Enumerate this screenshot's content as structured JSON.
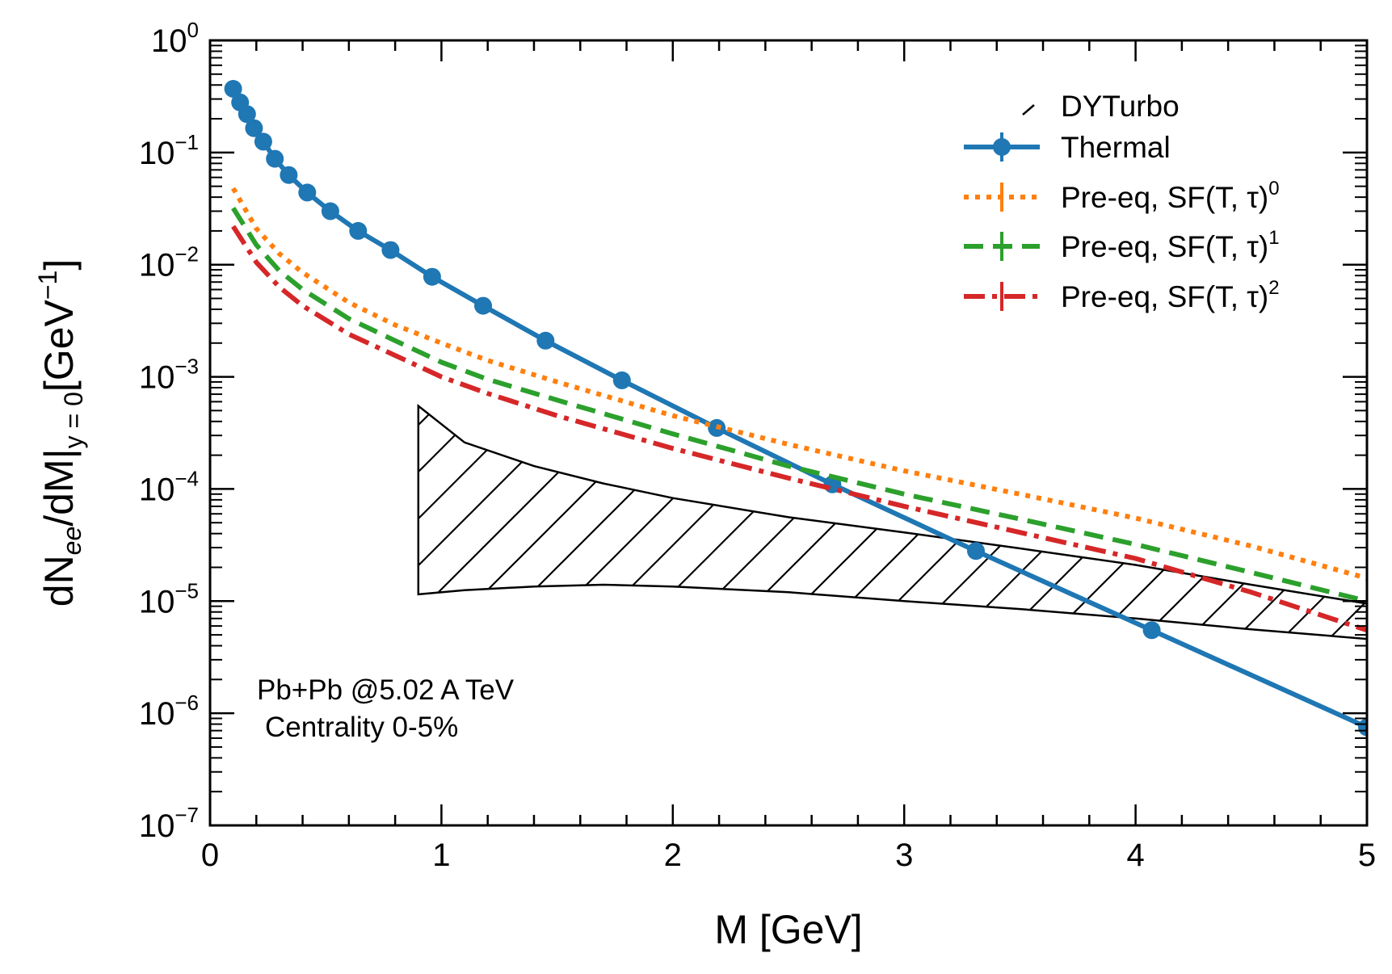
{
  "chart_data": {
    "type": "line",
    "x_axis": {
      "label": "M [GeV]",
      "range": [
        0,
        5
      ],
      "ticks": [
        0,
        1,
        2,
        3,
        4,
        5
      ],
      "tick_labels": [
        "0",
        "1",
        "2",
        "3",
        "4",
        "5"
      ],
      "minor_step": 0.2
    },
    "y_axis": {
      "label_parts": {
        "a": "dN",
        "a_sub": "ee",
        "b": "/dM|",
        "b_sub": "y = 0",
        "c": "[GeV",
        "c_sup": "−1",
        "d": "]"
      },
      "scale": "log",
      "range": [
        1e-07,
        1
      ],
      "tick_exponents": [
        0,
        -1,
        -2,
        -3,
        -4,
        -5,
        -6,
        -7
      ],
      "tick_base": "10",
      "tick_exp_labels": [
        "0",
        "−1",
        "−2",
        "−3",
        "−4",
        "−5",
        "−6",
        "−7"
      ]
    },
    "annotation": {
      "line1": "Pb+Pb @5.02 A TeV",
      "line2": "Centrality 0-5%"
    },
    "legend": {
      "position": "top-right",
      "entries": [
        {
          "key": "dyturbo",
          "label": "DYTurbo",
          "sup": ""
        },
        {
          "key": "thermal",
          "label": "Thermal",
          "sup": ""
        },
        {
          "key": "sf0",
          "label": "Pre-eq, SF(T, τ)",
          "sup": "0"
        },
        {
          "key": "sf1",
          "label": "Pre-eq, SF(T, τ)",
          "sup": "1"
        },
        {
          "key": "sf2",
          "label": "Pre-eq, SF(T, τ)",
          "sup": "2"
        }
      ]
    },
    "series": [
      {
        "key": "thermal",
        "name": "Thermal",
        "color": "#1f77b4",
        "style": "solid-markers",
        "x": [
          0.1,
          0.13,
          0.16,
          0.19,
          0.23,
          0.28,
          0.34,
          0.42,
          0.52,
          0.64,
          0.78,
          0.96,
          1.18,
          1.45,
          1.78,
          2.19,
          2.69,
          3.31,
          4.07,
          5.0
        ],
        "y": [
          0.37,
          0.28,
          0.22,
          0.165,
          0.125,
          0.088,
          0.063,
          0.044,
          0.03,
          0.02,
          0.0135,
          0.0078,
          0.0043,
          0.0021,
          0.00093,
          0.00035,
          0.00011,
          2.8e-05,
          5.5e-06,
          7.5e-07
        ]
      },
      {
        "key": "sf0",
        "name": "Pre-eq, SF(T, τ)^0",
        "color": "#ff7f0e",
        "style": "dotted",
        "x": [
          0.1,
          0.2,
          0.3,
          0.4,
          0.6,
          0.8,
          1.0,
          1.2,
          1.5,
          2.0,
          2.5,
          3.0,
          3.5,
          4.0,
          4.5,
          5.0
        ],
        "y": [
          0.048,
          0.021,
          0.0125,
          0.0085,
          0.0046,
          0.0029,
          0.002,
          0.0014,
          0.0009,
          0.00045,
          0.00025,
          0.000145,
          9e-05,
          5.5e-05,
          3.1e-05,
          1.6e-05
        ]
      },
      {
        "key": "sf1",
        "name": "Pre-eq, SF(T, τ)^1",
        "color": "#2ca02c",
        "style": "dashed",
        "x": [
          0.1,
          0.2,
          0.3,
          0.4,
          0.6,
          0.8,
          1.0,
          1.2,
          1.5,
          2.0,
          2.5,
          3.0,
          3.5,
          4.0,
          4.5,
          5.0
        ],
        "y": [
          0.032,
          0.015,
          0.0088,
          0.006,
          0.0033,
          0.0021,
          0.00135,
          0.00095,
          0.00062,
          0.00031,
          0.00016,
          9e-05,
          5.4e-05,
          3.2e-05,
          1.8e-05,
          1e-05
        ]
      },
      {
        "key": "sf2",
        "name": "Pre-eq, SF(T, τ)^2",
        "color": "#d62728",
        "style": "dashdot",
        "x": [
          0.1,
          0.2,
          0.3,
          0.4,
          0.6,
          0.8,
          1.0,
          1.2,
          1.5,
          2.0,
          2.5,
          3.0,
          3.5,
          4.0,
          4.5,
          5.0
        ],
        "y": [
          0.022,
          0.0105,
          0.0063,
          0.0043,
          0.0024,
          0.00155,
          0.001,
          0.00071,
          0.00045,
          0.00023,
          0.000125,
          7e-05,
          4.1e-05,
          2.4e-05,
          1.2e-05,
          5.5e-06
        ]
      }
    ],
    "band": {
      "key": "dyturbo",
      "name": "DYTurbo",
      "color": "#000000",
      "style": "hatched",
      "x": [
        0.9,
        1.1,
        1.4,
        1.7,
        2.0,
        2.5,
        3.0,
        3.5,
        4.0,
        4.5,
        5.0
      ],
      "upper": [
        0.00055,
        0.00026,
        0.00016,
        0.000112,
        8.3e-05,
        5.6e-05,
        4.1e-05,
        2.95e-05,
        2.1e-05,
        1.4e-05,
        9.5e-06
      ],
      "lower": [
        1.15e-05,
        1.25e-05,
        1.35e-05,
        1.4e-05,
        1.35e-05,
        1.2e-05,
        1e-05,
        8.5e-06,
        7e-06,
        5.6e-06,
        4.6e-06
      ]
    }
  }
}
